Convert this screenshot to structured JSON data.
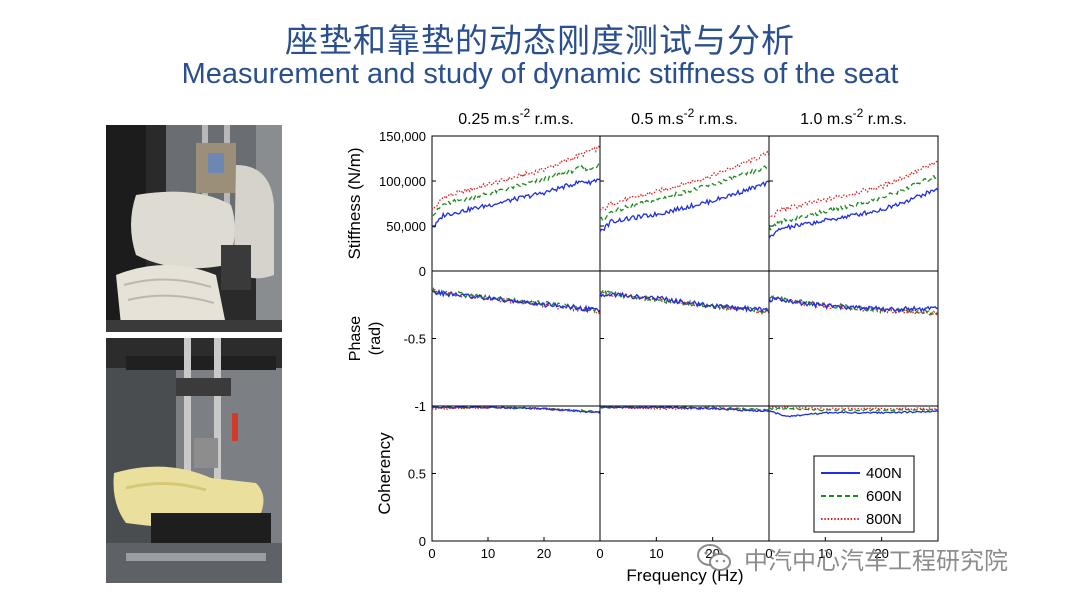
{
  "slide": {
    "title_cn": "座垫和靠垫的动态刚度测试与分析",
    "title_en": "Measurement and study of dynamic stiffness of the seat"
  },
  "photos": {
    "top": "seat cushion and backrest mounted in vertical test rig",
    "bottom": "foam cushion on shaker platform under test rig"
  },
  "watermark": {
    "text": "中汽中心汽车工程研究院",
    "icon": "wechat-icon"
  },
  "chart_data": {
    "type": "line",
    "column_titles": [
      {
        "main": "0.25 m.s",
        "sup": "-2",
        "tail": " r.m.s."
      },
      {
        "main": "0.5 m.s",
        "sup": "-2",
        "tail": " r.m.s."
      },
      {
        "main": "1.0 m.s",
        "sup": "-2",
        "tail": " r.m.s."
      }
    ],
    "xlabel": "Frequency (Hz)",
    "xlim": [
      0,
      30
    ],
    "xticks": [
      "0",
      "10",
      "20"
    ],
    "rows": [
      {
        "id": "stiffness",
        "ylabel": "Stiffness (N/m)",
        "ylim": [
          0,
          150000
        ],
        "yticks": [
          {
            "v": 0,
            "label": "0"
          },
          {
            "v": 50000,
            "label": "50,000"
          },
          {
            "v": 100000,
            "label": "100,000"
          },
          {
            "v": 150000,
            "label": "150,000"
          }
        ]
      },
      {
        "id": "phase",
        "ylabel_lines": [
          "Phase",
          "(rad)"
        ],
        "ylim": [
          -1,
          0
        ],
        "yticks": [
          {
            "v": -0.5,
            "label": "-0.5"
          },
          {
            "v": -1,
            "label": "-1"
          }
        ]
      },
      {
        "id": "coherency",
        "ylabel": "Coherency",
        "ylim": [
          0,
          1
        ],
        "yticks": [
          {
            "v": 0,
            "label": "0"
          },
          {
            "v": 0.5,
            "label": "0.5"
          }
        ]
      }
    ],
    "legend": {
      "position": "bottom-right of third coherency panel",
      "entries": [
        {
          "name": "400N",
          "color": "#1f2ee0",
          "style": "solid"
        },
        {
          "name": "600N",
          "color": "#1e8a1e",
          "style": "dashed"
        },
        {
          "name": "800N",
          "color": "#e02020",
          "style": "dotted"
        }
      ]
    },
    "series_colors": {
      "400N": "#1f2ee0",
      "600N": "#1e8a1e",
      "800N": "#e02020"
    },
    "panels": {
      "stiffness": [
        {
          "400N": [
            [
              0.5,
              50000
            ],
            [
              2,
              62000
            ],
            [
              10,
              73000
            ],
            [
              20,
              87000
            ],
            [
              27,
              100000
            ],
            [
              28,
              98000
            ],
            [
              30,
              103000
            ]
          ],
          "600N": [
            [
              0.5,
              64000
            ],
            [
              2,
              74000
            ],
            [
              10,
              86000
            ],
            [
              20,
              102000
            ],
            [
              27,
              115000
            ],
            [
              28,
              113000
            ],
            [
              30,
              118000
            ]
          ],
          "800N": [
            [
              0.5,
              70000
            ],
            [
              2,
              82000
            ],
            [
              10,
              96000
            ],
            [
              20,
              113000
            ],
            [
              27,
              130000
            ],
            [
              28,
              133000
            ],
            [
              30,
              137000
            ]
          ]
        },
        {
          "400N": [
            [
              0.5,
              46000
            ],
            [
              2,
              55000
            ],
            [
              10,
              63000
            ],
            [
              20,
              78000
            ],
            [
              30,
              98000
            ]
          ],
          "600N": [
            [
              0.5,
              57000
            ],
            [
              2,
              66000
            ],
            [
              10,
              79000
            ],
            [
              20,
              96000
            ],
            [
              30,
              116000
            ]
          ],
          "800N": [
            [
              0.5,
              68000
            ],
            [
              2,
              75000
            ],
            [
              10,
              88000
            ],
            [
              20,
              106000
            ],
            [
              30,
              131000
            ]
          ]
        },
        {
          "400N": [
            [
              0.5,
              38000
            ],
            [
              2,
              47000
            ],
            [
              10,
              56000
            ],
            [
              20,
              68000
            ],
            [
              30,
              91000
            ]
          ],
          "600N": [
            [
              0.5,
              48000
            ],
            [
              2,
              55000
            ],
            [
              10,
              66000
            ],
            [
              20,
              81000
            ],
            [
              30,
              106000
            ]
          ],
          "800N": [
            [
              0.5,
              60000
            ],
            [
              2,
              68000
            ],
            [
              10,
              79000
            ],
            [
              20,
              94000
            ],
            [
              30,
              121000
            ]
          ]
        }
      ],
      "phase": [
        {
          "400N": [
            [
              0.5,
              -0.16
            ],
            [
              10,
              -0.2
            ],
            [
              20,
              -0.25
            ],
            [
              30,
              -0.29
            ]
          ],
          "600N": [
            [
              0.5,
              -0.15
            ],
            [
              10,
              -0.2
            ],
            [
              20,
              -0.24
            ],
            [
              30,
              -0.29
            ]
          ],
          "800N": [
            [
              0.5,
              -0.15
            ],
            [
              10,
              -0.2
            ],
            [
              20,
              -0.25
            ],
            [
              30,
              -0.3
            ]
          ]
        },
        {
          "400N": [
            [
              0.5,
              -0.17
            ],
            [
              10,
              -0.2
            ],
            [
              20,
              -0.26
            ],
            [
              30,
              -0.29
            ]
          ],
          "600N": [
            [
              0.5,
              -0.16
            ],
            [
              10,
              -0.21
            ],
            [
              20,
              -0.26
            ],
            [
              30,
              -0.3
            ]
          ],
          "800N": [
            [
              0.5,
              -0.16
            ],
            [
              10,
              -0.21
            ],
            [
              20,
              -0.26
            ],
            [
              30,
              -0.31
            ]
          ]
        },
        {
          "400N": [
            [
              0.5,
              -0.21
            ],
            [
              10,
              -0.26
            ],
            [
              20,
              -0.28
            ],
            [
              30,
              -0.28
            ]
          ],
          "600N": [
            [
              0.5,
              -0.2
            ],
            [
              10,
              -0.25
            ],
            [
              20,
              -0.29
            ],
            [
              30,
              -0.31
            ]
          ],
          "800N": [
            [
              0.5,
              -0.2
            ],
            [
              10,
              -0.26
            ],
            [
              20,
              -0.29
            ],
            [
              30,
              -0.32
            ]
          ]
        }
      ],
      "coherency": [
        {
          "400N": [
            [
              0.5,
              0.99
            ],
            [
              10,
              0.99
            ],
            [
              20,
              0.98
            ],
            [
              30,
              0.95
            ]
          ],
          "600N": [
            [
              0.5,
              0.99
            ],
            [
              10,
              0.99
            ],
            [
              20,
              0.98
            ],
            [
              30,
              0.96
            ]
          ],
          "800N": [
            [
              0.5,
              0.98
            ],
            [
              10,
              0.99
            ],
            [
              20,
              0.98
            ],
            [
              30,
              0.95
            ]
          ]
        },
        {
          "400N": [
            [
              0.5,
              0.99
            ],
            [
              10,
              0.99
            ],
            [
              20,
              0.98
            ],
            [
              30,
              0.96
            ]
          ],
          "600N": [
            [
              0.5,
              0.99
            ],
            [
              10,
              0.99
            ],
            [
              20,
              0.99
            ],
            [
              30,
              0.97
            ]
          ],
          "800N": [
            [
              0.5,
              0.99
            ],
            [
              10,
              0.98
            ],
            [
              20,
              0.98
            ],
            [
              30,
              0.97
            ]
          ]
        },
        {
          "400N": [
            [
              0.5,
              0.96
            ],
            [
              3,
              0.92
            ],
            [
              10,
              0.95
            ],
            [
              20,
              0.95
            ],
            [
              30,
              0.96
            ]
          ],
          "600N": [
            [
              0.5,
              0.98
            ],
            [
              10,
              0.97
            ],
            [
              20,
              0.97
            ],
            [
              30,
              0.97
            ]
          ],
          "800N": [
            [
              0.5,
              0.99
            ],
            [
              10,
              0.98
            ],
            [
              20,
              0.98
            ],
            [
              30,
              0.98
            ]
          ]
        }
      ]
    }
  }
}
